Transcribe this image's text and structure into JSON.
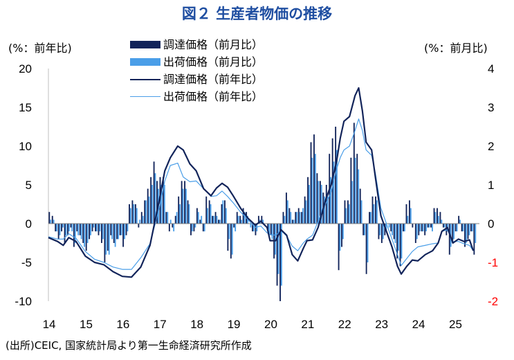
{
  "figure": {
    "title": "図２ 生産者物価の推移",
    "left_unit": "(%：前年比)",
    "right_unit": "(%：前月比)",
    "source": "(出所)CEIC, 国家統計局より第一生命経済研究所作成"
  },
  "colors": {
    "title": "#1f4ea1",
    "procurement": "#12245a",
    "shipment": "#4a9ee8",
    "right_axis": "#ff0000"
  },
  "chart_data": {
    "type": "bar+line",
    "title": "図２ 生産者物価の推移",
    "x_tick_labels": [
      "14",
      "15",
      "16",
      "17",
      "18",
      "19",
      "20",
      "21",
      "22",
      "23",
      "24",
      "25"
    ],
    "left_axis": {
      "label": "(%：前年比)",
      "ylim": [
        -10,
        20
      ],
      "ticks": [
        20,
        15,
        10,
        5,
        0,
        -5,
        -10
      ]
    },
    "right_axis": {
      "label": "(%：前月比)",
      "ylim": [
        -2,
        4
      ],
      "ticks": [
        4,
        3,
        2,
        1,
        0,
        -1,
        -2
      ]
    },
    "legend": [
      {
        "name": "調達価格（前月比）",
        "kind": "bar",
        "color": "#12245a"
      },
      {
        "name": "出荷価格（前月比）",
        "kind": "bar",
        "color": "#4a9ee8"
      },
      {
        "name": "調達価格（前年比）",
        "kind": "line",
        "color": "#12245a"
      },
      {
        "name": "出荷価格（前年比）",
        "kind": "line",
        "color": "#4a9ee8"
      }
    ],
    "year_start": 2014,
    "procurement_yoy_knots": [
      [
        2014.0,
        -1.8
      ],
      [
        2014.25,
        -2.3
      ],
      [
        2014.4,
        -2.8
      ],
      [
        2014.55,
        -1.8
      ],
      [
        2014.75,
        -2.3
      ],
      [
        2015.0,
        -4.2
      ],
      [
        2015.25,
        -5.0
      ],
      [
        2015.5,
        -5.3
      ],
      [
        2015.75,
        -6.2
      ],
      [
        2016.0,
        -6.8
      ],
      [
        2016.25,
        -6.9
      ],
      [
        2016.5,
        -5.6
      ],
      [
        2016.75,
        -2.8
      ],
      [
        2017.0,
        3.0
      ],
      [
        2017.15,
        6.8
      ],
      [
        2017.3,
        8.5
      ],
      [
        2017.5,
        10.0
      ],
      [
        2017.65,
        9.5
      ],
      [
        2017.83,
        7.7
      ],
      [
        2018.0,
        6.8
      ],
      [
        2018.2,
        4.5
      ],
      [
        2018.4,
        3.6
      ],
      [
        2018.55,
        4.6
      ],
      [
        2018.7,
        5.2
      ],
      [
        2018.85,
        4.7
      ],
      [
        2019.0,
        3.6
      ],
      [
        2019.2,
        2.0
      ],
      [
        2019.4,
        0.7
      ],
      [
        2019.6,
        -0.2
      ],
      [
        2019.75,
        0.3
      ],
      [
        2019.92,
        -0.5
      ],
      [
        2020.0,
        -2.2
      ],
      [
        2020.15,
        -2.2
      ],
      [
        2020.3,
        -0.8
      ],
      [
        2020.45,
        -1.5
      ],
      [
        2020.6,
        -4.0
      ],
      [
        2020.75,
        -4.8
      ],
      [
        2020.9,
        -3.2
      ],
      [
        2021.0,
        -2.2
      ],
      [
        2021.15,
        -2.1
      ],
      [
        2021.3,
        -0.5
      ],
      [
        2021.5,
        3.0
      ],
      [
        2021.65,
        5.0
      ],
      [
        2021.8,
        8.0
      ],
      [
        2021.9,
        11.0
      ],
      [
        2022.0,
        13.2
      ],
      [
        2022.15,
        13.8
      ],
      [
        2022.3,
        16.5
      ],
      [
        2022.4,
        17.5
      ],
      [
        2022.5,
        14.5
      ],
      [
        2022.6,
        10.5
      ],
      [
        2022.75,
        9.5
      ],
      [
        2022.85,
        6.0
      ],
      [
        2023.0,
        1.0
      ],
      [
        2023.15,
        -1.0
      ],
      [
        2023.3,
        -3.0
      ],
      [
        2023.45,
        -5.5
      ],
      [
        2023.55,
        -6.5
      ],
      [
        2023.7,
        -5.5
      ],
      [
        2023.85,
        -4.7
      ],
      [
        2024.0,
        -4.8
      ],
      [
        2024.2,
        -4.0
      ],
      [
        2024.4,
        -3.5
      ],
      [
        2024.55,
        -2.5
      ],
      [
        2024.65,
        -1.0
      ],
      [
        2024.8,
        -0.5
      ],
      [
        2024.95,
        -2.5
      ],
      [
        2025.1,
        -2.0
      ],
      [
        2025.25,
        -2.3
      ],
      [
        2025.4,
        -2.1
      ],
      [
        2025.5,
        -3.5
      ]
    ],
    "shipment_yoy_knots": [
      [
        2014.0,
        -1.7
      ],
      [
        2014.25,
        -2.0
      ],
      [
        2014.4,
        -2.0
      ],
      [
        2014.55,
        -1.3
      ],
      [
        2014.75,
        -1.9
      ],
      [
        2015.0,
        -3.6
      ],
      [
        2015.25,
        -4.6
      ],
      [
        2015.5,
        -5.0
      ],
      [
        2015.75,
        -5.6
      ],
      [
        2016.0,
        -5.9
      ],
      [
        2016.25,
        -5.9
      ],
      [
        2016.5,
        -4.4
      ],
      [
        2016.75,
        -2.6
      ],
      [
        2017.0,
        2.0
      ],
      [
        2017.15,
        5.5
      ],
      [
        2017.3,
        7.5
      ],
      [
        2017.5,
        7.8
      ],
      [
        2017.65,
        6.0
      ],
      [
        2017.83,
        5.4
      ],
      [
        2018.0,
        5.5
      ],
      [
        2018.2,
        4.5
      ],
      [
        2018.4,
        3.5
      ],
      [
        2018.55,
        3.6
      ],
      [
        2018.7,
        4.2
      ],
      [
        2018.85,
        3.5
      ],
      [
        2019.0,
        2.7
      ],
      [
        2019.2,
        1.5
      ],
      [
        2019.4,
        0.5
      ],
      [
        2019.6,
        -0.5
      ],
      [
        2019.75,
        -0.3
      ],
      [
        2019.92,
        -1.2
      ],
      [
        2020.0,
        -1.4
      ],
      [
        2020.15,
        -1.5
      ],
      [
        2020.3,
        -0.9
      ],
      [
        2020.45,
        -1.6
      ],
      [
        2020.6,
        -2.9
      ],
      [
        2020.75,
        -3.5
      ],
      [
        2020.9,
        -2.5
      ],
      [
        2021.0,
        -2.0
      ],
      [
        2021.15,
        -1.5
      ],
      [
        2021.3,
        0.3
      ],
      [
        2021.5,
        2.5
      ],
      [
        2021.65,
        4.0
      ],
      [
        2021.8,
        7.0
      ],
      [
        2021.9,
        8.5
      ],
      [
        2022.0,
        9.5
      ],
      [
        2022.15,
        10.0
      ],
      [
        2022.3,
        12.0
      ],
      [
        2022.4,
        13.5
      ],
      [
        2022.5,
        12.0
      ],
      [
        2022.6,
        9.5
      ],
      [
        2022.75,
        8.8
      ],
      [
        2022.85,
        6.5
      ],
      [
        2023.0,
        2.0
      ],
      [
        2023.15,
        0.0
      ],
      [
        2023.3,
        -2.0
      ],
      [
        2023.45,
        -4.0
      ],
      [
        2023.55,
        -5.4
      ],
      [
        2023.7,
        -4.5
      ],
      [
        2023.85,
        -3.6
      ],
      [
        2024.0,
        -3.0
      ],
      [
        2024.2,
        -2.8
      ],
      [
        2024.4,
        -2.6
      ],
      [
        2024.55,
        -2.5
      ],
      [
        2024.65,
        -1.0
      ],
      [
        2024.8,
        -0.8
      ],
      [
        2024.95,
        -2.3
      ],
      [
        2025.1,
        -2.3
      ],
      [
        2025.25,
        -2.6
      ],
      [
        2025.4,
        -2.8
      ],
      [
        2025.5,
        -3.5
      ]
    ],
    "procurement_mom_bars": [
      0.3,
      0.2,
      -0.2,
      -0.4,
      -0.2,
      -0.5,
      -0.3,
      -0.1,
      -0.6,
      -0.2,
      -0.3,
      -0.5,
      -0.7,
      -0.4,
      -0.2,
      -0.2,
      -0.3,
      -0.5,
      -1.0,
      -0.7,
      -0.3,
      -0.5,
      -0.4,
      -0.3,
      -0.6,
      -0.3,
      0.5,
      0.6,
      0.5,
      -0.1,
      0.3,
      0.6,
      0.9,
      1.2,
      1.6,
      1.1,
      1.2,
      1.2,
      0.3,
      -0.2,
      -0.1,
      0.2,
      0.7,
      1.1,
      1.1,
      0.6,
      -0.3,
      -0.2,
      0.4,
      0.1,
      -0.2,
      0.7,
      0.6,
      0.2,
      0.3,
      0.1,
      0.5,
      0.6,
      -0.7,
      -0.9,
      -0.1,
      0.3,
      0.2,
      0.4,
      0.3,
      0.0,
      -0.2,
      -0.3,
      0.2,
      0.2,
      0.0,
      -0.2,
      -0.3,
      -0.9,
      -1.6,
      -2.0,
      0.3,
      0.8,
      0.4,
      0.1,
      0.3,
      0.4,
      0.3,
      0.7,
      1.2,
      2.1,
      2.3,
      1.3,
      1.1,
      0.8,
      1.0,
      1.8,
      2.2,
      2.5,
      -1.2,
      -0.6,
      0.6,
      0.6,
      1.7,
      2.6,
      1.8,
      0.9,
      -0.3,
      -1.3,
      0.3,
      0.7,
      0.7,
      -0.4,
      -0.5,
      -0.3,
      0.0,
      -0.2,
      -0.4,
      -0.9,
      -1.1,
      -0.2,
      0.5,
      0.6,
      -0.1,
      -0.5,
      -0.3,
      -0.2,
      -0.3,
      -0.1,
      -0.1,
      0.4,
      0.4,
      0.3,
      -0.1,
      -0.3,
      -0.8,
      -0.5,
      -0.2,
      0.2,
      -0.2,
      -0.6,
      -0.4,
      -0.2,
      -0.8
    ],
    "shipment_mom_bars": [
      0.1,
      0.1,
      -0.2,
      -0.3,
      -0.1,
      -0.3,
      -0.2,
      -0.2,
      -0.5,
      -0.3,
      -0.4,
      -0.6,
      -0.5,
      -0.3,
      -0.1,
      -0.2,
      -0.2,
      -0.4,
      -0.8,
      -0.8,
      -0.4,
      -0.6,
      -0.4,
      -0.3,
      -0.4,
      -0.2,
      0.4,
      0.5,
      0.4,
      0.1,
      0.2,
      0.6,
      0.7,
      1.0,
      1.3,
      0.9,
      1.0,
      1.0,
      0.3,
      0.1,
      -0.2,
      0.3,
      0.5,
      0.9,
      0.9,
      0.5,
      -0.2,
      -0.1,
      0.3,
      0.2,
      -0.2,
      0.4,
      0.5,
      0.2,
      0.2,
      0.1,
      0.6,
      0.4,
      -0.4,
      -0.8,
      -0.2,
      0.2,
      0.1,
      0.3,
      0.2,
      -0.1,
      -0.2,
      -0.2,
      0.1,
      0.1,
      0.0,
      -0.3,
      -0.4,
      -0.8,
      -1.3,
      -1.6,
      0.2,
      0.6,
      0.3,
      0.1,
      0.3,
      0.3,
      0.4,
      0.6,
      1.0,
      1.7,
      1.8,
      1.1,
      1.0,
      0.7,
      0.7,
      1.2,
      1.6,
      1.9,
      -0.7,
      -0.4,
      0.4,
      0.5,
      1.1,
      1.7,
      1.4,
      0.6,
      -0.3,
      -1.0,
      0.3,
      0.5,
      0.6,
      -0.3,
      -0.4,
      -0.2,
      -0.1,
      -0.3,
      -0.5,
      -0.7,
      -0.9,
      -0.2,
      0.2,
      0.4,
      0.0,
      -0.4,
      -0.2,
      -0.2,
      -0.2,
      -0.1,
      -0.2,
      0.3,
      0.2,
      0.1,
      -0.1,
      -0.2,
      -0.6,
      -0.4,
      -0.2,
      0.1,
      -0.2,
      -0.5,
      -0.3,
      -0.2,
      -0.5
    ]
  }
}
